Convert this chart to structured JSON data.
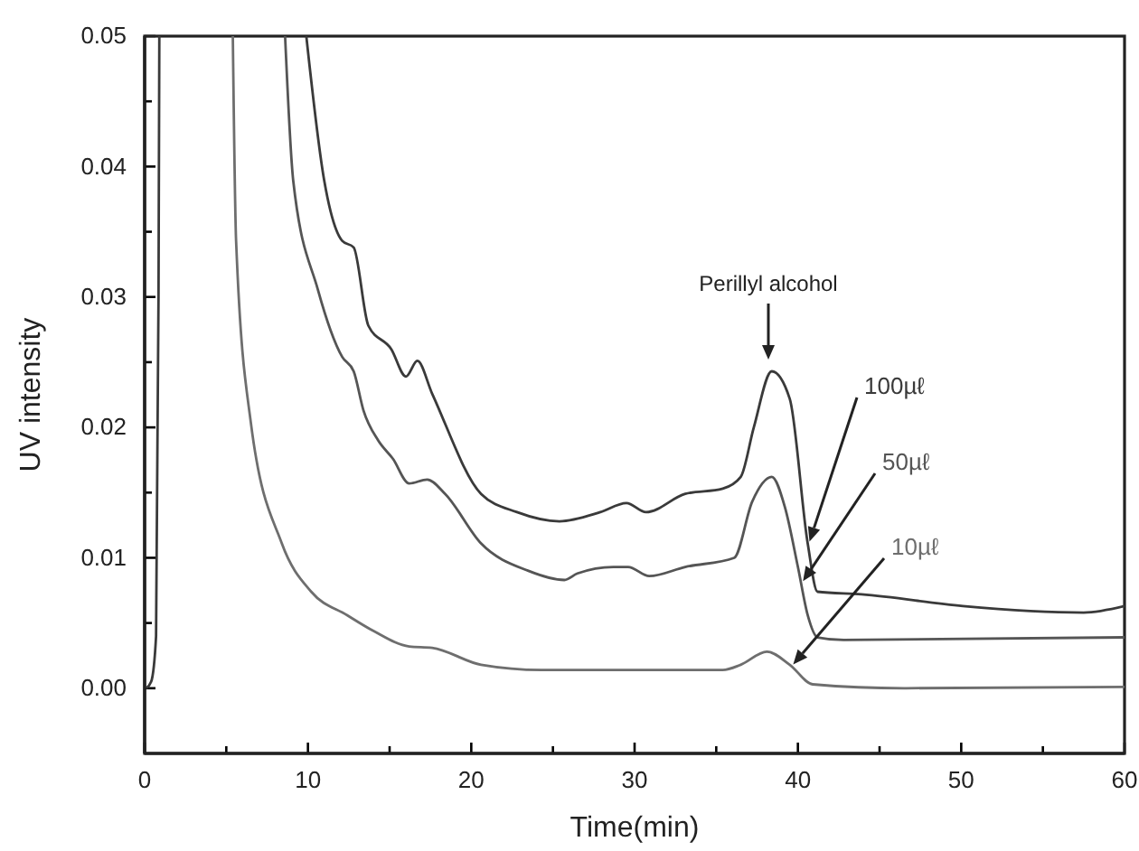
{
  "chart_data": {
    "type": "line",
    "xlabel": "Time(min)",
    "ylabel": "UV intensity",
    "xlim": [
      0,
      60
    ],
    "ylim": [
      -0.005,
      0.05
    ],
    "xticks": [
      0,
      {
        "value": 5,
        "label": null
      },
      10,
      {
        "value": 15,
        "label": null
      },
      20,
      {
        "value": 25,
        "label": null
      },
      30,
      {
        "value": 35,
        "label": null
      },
      40,
      {
        "value": 45,
        "label": null
      },
      50,
      {
        "value": 55,
        "label": null
      },
      60
    ],
    "yticks": [
      {
        "value": 0,
        "label": "0.00"
      },
      {
        "value": 0.005,
        "label": null
      },
      {
        "value": 0.01,
        "label": "0.01"
      },
      {
        "value": 0.015,
        "label": null
      },
      {
        "value": 0.02,
        "label": "0.02"
      },
      {
        "value": 0.025,
        "label": null
      },
      {
        "value": 0.03,
        "label": "0.03"
      },
      {
        "value": 0.035,
        "label": null
      },
      {
        "value": 0.04,
        "label": "0.04"
      },
      {
        "value": 0.045,
        "label": null
      },
      {
        "value": 0.05,
        "label": "0.05"
      }
    ],
    "grid": false,
    "marker": "none",
    "line_style": "solid",
    "annotations": [
      "Perillyl alcohol"
    ],
    "series": [
      {
        "name": "100µℓ",
        "color": "#3a3a3a",
        "x": [
          0.1,
          0.4,
          0.7,
          0.85,
          0.9,
          3,
          9.9,
          11,
          12.1,
          12.8,
          13.7,
          15.1,
          16,
          16.7,
          17.6,
          20.6,
          22.8,
          25.4,
          27.9,
          29.5,
          30.7,
          33.1,
          35.4,
          36.5,
          37.3,
          38.4,
          39.5,
          40.6,
          41.2,
          43.9,
          50.1,
          57.5,
          60
        ],
        "values": [
          0,
          0.0005,
          0.004,
          0.03,
          0.05,
          null,
          0.05,
          0.0389,
          0.0343,
          0.0338,
          0.0278,
          0.026,
          0.0239,
          0.0251,
          0.0226,
          0.0149,
          0.0135,
          0.0128,
          0.0135,
          0.0142,
          0.0135,
          0.0149,
          0.0153,
          0.0162,
          0.02,
          0.0243,
          0.0222,
          0.0111,
          0.0074,
          0.0072,
          0.0063,
          0.0058,
          0.0063
        ]
      },
      {
        "name": "50µℓ",
        "color": "#555555",
        "x": [
          8.6,
          9.1,
          10.6,
          12.1,
          12.8,
          13.4,
          14.3,
          15.2,
          16.2,
          17.3,
          18.4,
          20.6,
          23.5,
          25.7,
          26.5,
          28.7,
          29.6,
          30.9,
          33.1,
          36.1,
          37.2,
          38.4,
          39.2,
          40,
          40.6,
          41.2,
          42.8,
          60
        ],
        "values": [
          0.05,
          0.0389,
          0.0306,
          0.0254,
          0.0243,
          0.0213,
          0.019,
          0.0176,
          0.0157,
          0.016,
          0.0149,
          0.0111,
          0.009,
          0.0083,
          0.0088,
          0.0093,
          0.0093,
          0.0086,
          0.0093,
          0.01,
          0.0143,
          0.0162,
          0.0139,
          0.0093,
          0.0056,
          0.0039,
          0.0037,
          0.0039
        ]
      },
      {
        "name": "10µℓ",
        "color": "#6e6e6e",
        "x": [
          5.4,
          5.6,
          6.5,
          8.4,
          10.2,
          12.4,
          14,
          16.2,
          17.6,
          20.6,
          24.3,
          35.4,
          36.5,
          38.1,
          39.5,
          40.9,
          46.5,
          60
        ],
        "values": [
          0.05,
          0.0343,
          0.0204,
          0.0111,
          0.0074,
          0.0056,
          0.0044,
          0.0032,
          0.0031,
          0.0018,
          0.0014,
          0.0014,
          0.0018,
          0.0028,
          0.0018,
          0.0003,
          0,
          0.0001
        ]
      }
    ]
  }
}
